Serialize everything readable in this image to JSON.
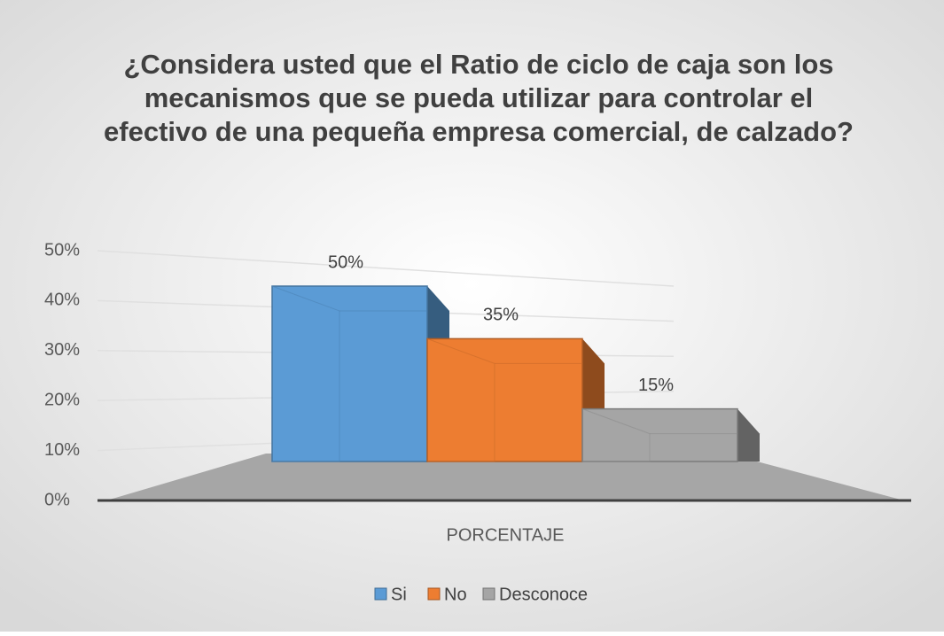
{
  "chart_data": {
    "type": "bar3d",
    "title": [
      "¿Considera usted que el Ratio de ciclo de caja son los",
      "mecanismos que se pueda utilizar para controlar el",
      "efectivo de una pequeña empresa comercial, de calzado?"
    ],
    "categories": [
      "PORCENTAJE"
    ],
    "series": [
      {
        "name": "Si",
        "color": "#5b9bd5",
        "values": [
          50
        ],
        "value_labels": [
          "50%"
        ]
      },
      {
        "name": "No",
        "color": "#ed7d31",
        "values": [
          35
        ],
        "value_labels": [
          "35%"
        ]
      },
      {
        "name": "Desconoce",
        "color": "#a5a5a5",
        "values": [
          15
        ],
        "value_labels": [
          "15%"
        ]
      }
    ],
    "ylim": [
      0,
      50
    ],
    "yticks": [
      {
        "value": 0,
        "label": "0%"
      },
      {
        "value": 10,
        "label": "10%"
      },
      {
        "value": 20,
        "label": "20%"
      },
      {
        "value": 30,
        "label": "30%"
      },
      {
        "value": 40,
        "label": "40%"
      },
      {
        "value": 50,
        "label": "50%"
      }
    ],
    "grid": true,
    "legend": "bottom"
  }
}
